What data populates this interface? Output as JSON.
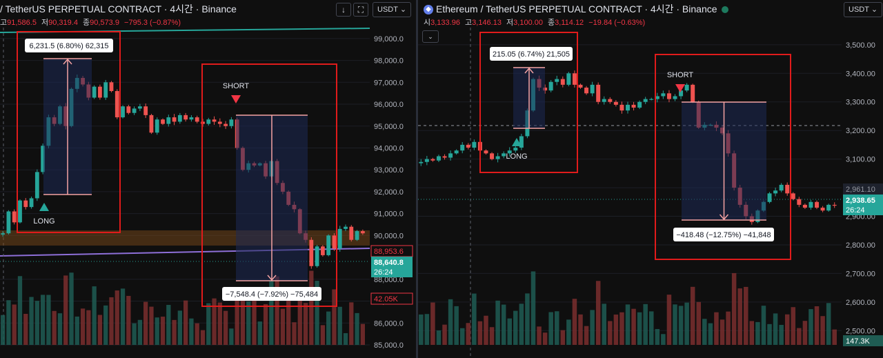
{
  "left": {
    "title": "/ TetherUS PERPETUAL CONTRACT · 4시간 · Binance",
    "ohlc": [
      {
        "label": "고",
        "value": "91,586.5"
      },
      {
        "label": "저",
        "value": "90,319.4"
      },
      {
        "label": "종",
        "value": "90,573.9"
      },
      {
        "label": "",
        "value": "−795.3 (−0.87%)"
      }
    ],
    "currency": "USDT",
    "chart_data": {
      "type": "candlestick",
      "ylim": [
        85000,
        99500
      ],
      "y_ticks": [
        "99,000.0",
        "98,000.0",
        "97,000.0",
        "96,000.0",
        "95,000.0",
        "94,000.0",
        "93,000.0",
        "92,000.0",
        "91,000.0",
        "90,000.0",
        "88,000.0",
        "87,000.0",
        "86,000.0",
        "85,000.0"
      ],
      "y_tick_values": [
        99000,
        98000,
        97000,
        96000,
        95000,
        94000,
        93000,
        92000,
        91000,
        90000,
        88000,
        87000,
        86000,
        85000
      ],
      "closes": [
        90100,
        91100,
        90600,
        91600,
        91300,
        91700,
        92900,
        94100,
        95400,
        95100,
        95900,
        95000,
        96700,
        97200,
        96900,
        96300,
        96800,
        96300,
        97000,
        96600,
        95400,
        95900,
        95600,
        95800,
        95900,
        95500,
        94700,
        95300,
        95100,
        95400,
        95200,
        95500,
        95300,
        95400,
        95200,
        95100,
        95300,
        95200,
        95100,
        95000,
        95300,
        94000,
        93000,
        93300,
        93200,
        93300,
        92700,
        93400,
        92400,
        92000,
        91400,
        91200,
        90100,
        89800,
        88600,
        89500,
        89100,
        90000,
        89400,
        90300,
        90400,
        89800,
        90200,
        90100
      ],
      "annotations": {
        "long_box": "6,231.5 (6.80%) 62,315",
        "long_label": "LONG",
        "short_box": "−7,548.4 (−7.92%) −75,484",
        "short_label": "SHORT"
      },
      "price_labels": {
        "red": "88,953.6",
        "green_price": "88,640.8",
        "green_time": "26:24",
        "volume": "42.05K"
      }
    }
  },
  "right": {
    "title": "Ethereum / TetherUS PERPETUAL CONTRACT · 4시간 · Binance",
    "ohlc": [
      {
        "label": "시",
        "value": "3,133.96"
      },
      {
        "label": "고",
        "value": "3,146.13"
      },
      {
        "label": "저",
        "value": "3,100.00"
      },
      {
        "label": "종",
        "value": "3,114.12"
      },
      {
        "label": "",
        "value": "−19.84 (−0.63%)"
      }
    ],
    "currency": "USDT",
    "chart_data": {
      "type": "candlestick",
      "ylim": [
        2450,
        3560
      ],
      "y_ticks": [
        "3,500.00",
        "3,400.00",
        "3,300.00",
        "3,200.00",
        "3,100.00",
        "3,000.00",
        "2,900.00",
        "2,800.00",
        "2,700.00",
        "2,600.00",
        "2,500.00"
      ],
      "y_tick_values": [
        3500,
        3400,
        3300,
        3200,
        3100,
        3000,
        2900,
        2800,
        2700,
        2600,
        2500
      ],
      "closes": [
        3090,
        3100,
        3095,
        3110,
        3105,
        3120,
        3130,
        3150,
        3140,
        3160,
        3130,
        3120,
        3100,
        3110,
        3120,
        3130,
        3140,
        3180,
        3270,
        3380,
        3350,
        3340,
        3370,
        3380,
        3360,
        3400,
        3360,
        3350,
        3330,
        3360,
        3300,
        3310,
        3300,
        3290,
        3270,
        3290,
        3280,
        3300,
        3310,
        3310,
        3320,
        3330,
        3310,
        3320,
        3340,
        3360,
        3300,
        3210,
        3220,
        3220,
        3210,
        3190,
        3120,
        3000,
        2940,
        2900,
        2880,
        2920,
        2950,
        2980,
        2990,
        3010,
        2980,
        2960,
        2940,
        2930,
        2950,
        2930,
        2920,
        2940,
        2938
      ],
      "annotations": {
        "long_box": "215.05 (6.74%) 21,505",
        "long_label": "LONG",
        "short_box": "−418.48 (−12.75%) −41,848",
        "short_label": "SHORT"
      },
      "price_labels": {
        "dark": "2,961.10",
        "green_price": "2,938.65",
        "green_time": "26:24",
        "volume": "147.3K"
      }
    }
  }
}
